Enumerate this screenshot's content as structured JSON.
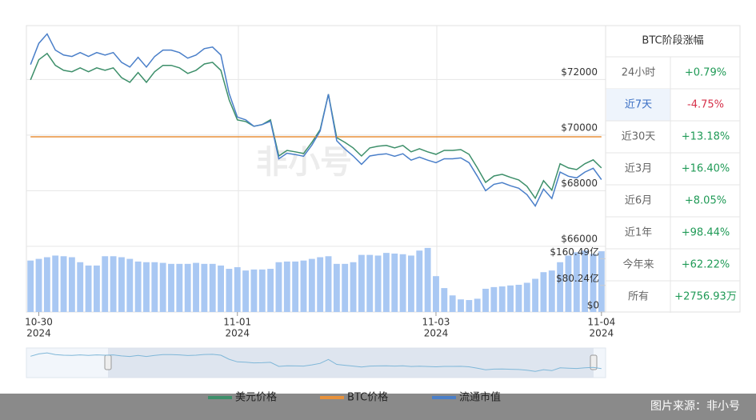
{
  "chart_data": {
    "type": "line",
    "watermark": "非小号",
    "categories": [
      null,
      "10-30",
      null,
      null,
      null,
      null,
      null,
      null,
      null,
      null,
      null,
      null,
      null,
      null,
      null,
      null,
      null,
      null,
      null,
      null,
      null,
      null,
      null,
      null,
      null,
      "11-01",
      null,
      null,
      null,
      null,
      null,
      null,
      null,
      null,
      null,
      null,
      null,
      null,
      null,
      null,
      null,
      null,
      null,
      null,
      null,
      null,
      null,
      null,
      null,
      "11-03",
      null,
      null,
      null,
      null,
      null,
      null,
      null,
      null,
      null,
      null,
      null,
      null,
      null,
      null,
      null,
      null,
      null,
      null,
      null,
      "11-04"
    ],
    "category_years": [
      null,
      "2024",
      null,
      null,
      null,
      null,
      null,
      null,
      null,
      null,
      null,
      null,
      null,
      null,
      null,
      null,
      null,
      null,
      null,
      null,
      null,
      null,
      null,
      null,
      null,
      "2024",
      null,
      null,
      null,
      null,
      null,
      null,
      null,
      null,
      null,
      null,
      null,
      null,
      null,
      null,
      null,
      null,
      null,
      null,
      null,
      null,
      null,
      null,
      null,
      "2024",
      null,
      null,
      null,
      null,
      null,
      null,
      null,
      null,
      null,
      null,
      null,
      null,
      null,
      null,
      null,
      null,
      null,
      null,
      null,
      "2024"
    ],
    "ylim": [
      65940,
      73940
    ],
    "yticks": [
      {
        "value": 72000,
        "label": "$72000"
      },
      {
        "value": 70000,
        "label": "$70000"
      },
      {
        "value": 68000,
        "label": "$68000"
      },
      {
        "value": 66000,
        "label": "$66000"
      }
    ],
    "y2lim": [
      0,
      200
    ],
    "y2ticks": [
      {
        "value": 160.49,
        "label": "$160.49亿"
      },
      {
        "value": 80.24,
        "label": "$80.24亿"
      },
      {
        "value": 0,
        "label": "$0"
      }
    ],
    "y3lim": [
      0,
      2
    ],
    "grid": true,
    "series": [
      {
        "name": "美元价格",
        "color": "#3d8f6a",
        "values": [
          71990,
          72710,
          72940,
          72510,
          72330,
          72280,
          72420,
          72280,
          72420,
          72330,
          72420,
          72070,
          71900,
          72250,
          71900,
          72280,
          72510,
          72510,
          72420,
          72220,
          72330,
          72560,
          72620,
          72330,
          71270,
          70550,
          70490,
          70320,
          70380,
          70550,
          69250,
          69450,
          69400,
          69340,
          69740,
          70200,
          71470,
          69910,
          69740,
          69540,
          69250,
          69540,
          69600,
          69630,
          69540,
          69630,
          69400,
          69510,
          69400,
          69310,
          69450,
          69450,
          69480,
          69310,
          68820,
          68300,
          68530,
          68590,
          68480,
          68390,
          68160,
          67730,
          68360,
          68020,
          68970,
          68820,
          68760,
          68970,
          69110,
          68820
        ]
      },
      {
        "name": "BTC价格",
        "color": "#e8913a",
        "axis": "y3",
        "values": [
          1,
          1,
          1,
          1,
          1,
          1,
          1,
          1,
          1,
          1,
          1,
          1,
          1,
          1,
          1,
          1,
          1,
          1,
          1,
          1,
          1,
          1,
          1,
          1,
          1,
          1,
          1,
          1,
          1,
          1,
          1,
          1,
          1,
          1,
          1,
          1,
          1,
          1,
          1,
          1,
          1,
          1,
          1,
          1,
          1,
          1,
          1,
          1,
          1,
          1,
          1,
          1,
          1,
          1,
          1,
          1,
          1,
          1,
          1,
          1,
          1,
          1,
          1,
          1,
          1,
          1,
          1,
          1,
          1,
          1
        ]
      },
      {
        "name": "流通市值",
        "color": "#4a7fc9",
        "values": [
          72540,
          73300,
          73640,
          73060,
          72880,
          72830,
          72970,
          72830,
          72970,
          72880,
          72970,
          72620,
          72450,
          72800,
          72450,
          72830,
          73060,
          73060,
          72970,
          72770,
          72880,
          73110,
          73170,
          72880,
          71500,
          70650,
          70550,
          70320,
          70380,
          70500,
          69150,
          69350,
          69300,
          69240,
          69640,
          70150,
          71470,
          69800,
          69500,
          69250,
          68950,
          69250,
          69300,
          69330,
          69240,
          69330,
          69100,
          69210,
          69100,
          69010,
          69150,
          69150,
          69180,
          69010,
          68520,
          68000,
          68230,
          68290,
          68180,
          68090,
          67860,
          67450,
          68060,
          67720,
          68670,
          68520,
          68460,
          68670,
          68810,
          68400
        ]
      }
    ],
    "volume": {
      "color": "#a9c8f3",
      "axis": "y2",
      "values": [
        155,
        160,
        165,
        170,
        168,
        165,
        150,
        140,
        140,
        168,
        168,
        165,
        160,
        152,
        150,
        150,
        148,
        145,
        145,
        145,
        148,
        145,
        145,
        140,
        130,
        135,
        125,
        128,
        128,
        130,
        150,
        152,
        152,
        155,
        160,
        165,
        168,
        145,
        145,
        150,
        172,
        172,
        170,
        178,
        176,
        174,
        170,
        185,
        193,
        108,
        72,
        50,
        38,
        36,
        40,
        70,
        75,
        77,
        80,
        82,
        88,
        100,
        120,
        125,
        150,
        170,
        180,
        185,
        175,
        183
      ]
    }
  },
  "panel": {
    "title": "BTC阶段涨幅",
    "selected": 1,
    "rows": [
      [
        "24小时",
        "+0.79%"
      ],
      [
        "近7天",
        "-4.75%"
      ],
      [
        "近30天",
        "+13.18%"
      ],
      [
        "近3月",
        "+16.40%"
      ],
      [
        "近6月",
        "+8.05%"
      ],
      [
        "近1年",
        "+98.44%"
      ],
      [
        "今年来",
        "+62.22%"
      ],
      [
        "所有",
        "+2756.93万"
      ]
    ]
  },
  "footer": {
    "source": "图片来源：非小号"
  }
}
